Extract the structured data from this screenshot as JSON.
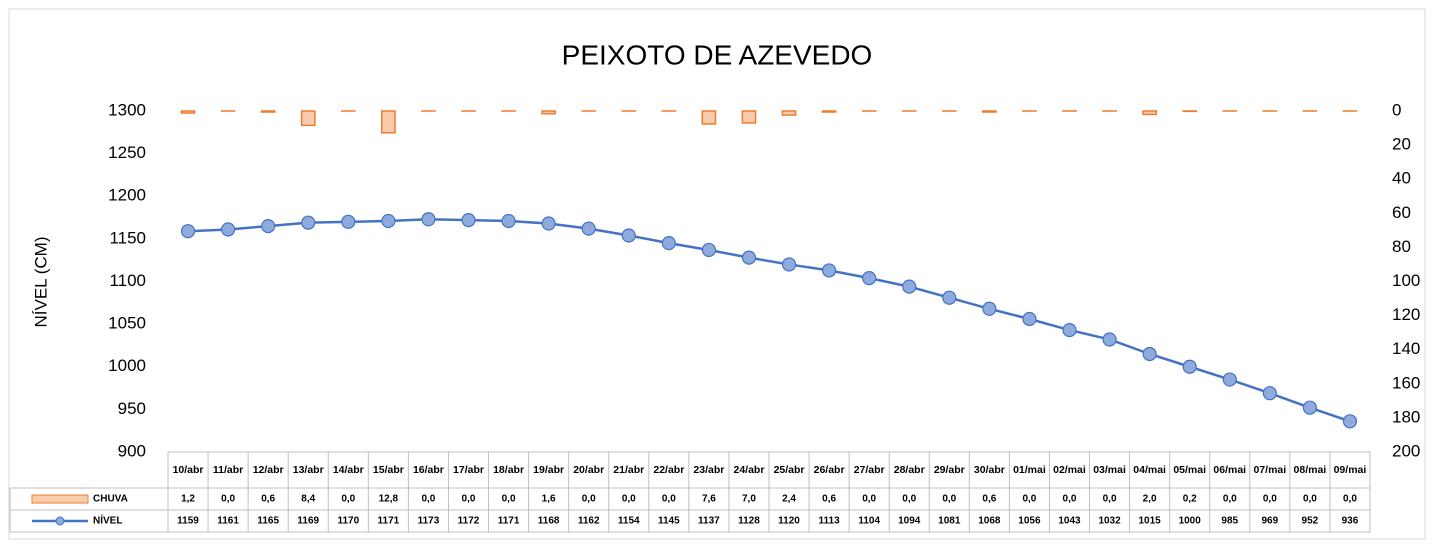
{
  "chart_data": {
    "type": "combo",
    "title": "PEIXOTO DE AZEVEDO",
    "y_label": "NÍVEL (CM)",
    "categories": [
      "10/abr",
      "11/abr",
      "12/abr",
      "13/abr",
      "14/abr",
      "15/abr",
      "16/abr",
      "17/abr",
      "18/abr",
      "19/abr",
      "20/abr",
      "21/abr",
      "22/abr",
      "23/abr",
      "24/abr",
      "25/abr",
      "26/abr",
      "27/abr",
      "28/abr",
      "29/abr",
      "30/abr",
      "01/mai",
      "02/mai",
      "03/mai",
      "04/mai",
      "05/mai",
      "06/mai",
      "07/mai",
      "08/mai",
      "09/mai"
    ],
    "series": [
      {
        "name": "CHUVA",
        "type": "bar",
        "axis": "y2",
        "color": "#ed7d31",
        "fill": "#f8cbad",
        "values": [
          1.2,
          0.0,
          0.6,
          8.4,
          0.0,
          12.8,
          0.0,
          0.0,
          0.0,
          1.6,
          0.0,
          0.0,
          0.0,
          7.6,
          7.0,
          2.4,
          0.6,
          0.0,
          0.0,
          0.0,
          0.6,
          0.0,
          0.0,
          0.0,
          2.0,
          0.2,
          0.0,
          0.0,
          0.0,
          0.0
        ],
        "value_labels": [
          "1,2",
          "0,0",
          "0,6",
          "8,4",
          "0,0",
          "12,8",
          "0,0",
          "0,0",
          "0,0",
          "1,6",
          "0,0",
          "0,0",
          "0,0",
          "7,6",
          "7,0",
          "2,4",
          "0,6",
          "0,0",
          "0,0",
          "0,0",
          "0,6",
          "0,0",
          "0,0",
          "0,0",
          "2,0",
          "0,2",
          "0,0",
          "0,0",
          "0,0",
          "0,0"
        ]
      },
      {
        "name": "NÍVEL",
        "type": "line",
        "color": "#4472c4",
        "marker_fill": "#8faadc",
        "values": [
          1159,
          1161,
          1165,
          1169,
          1170,
          1171,
          1173,
          1172,
          1171,
          1168,
          1162,
          1154,
          1145,
          1137,
          1128,
          1120,
          1113,
          1104,
          1094,
          1081,
          1068,
          1056,
          1043,
          1032,
          1015,
          1000,
          985,
          969,
          952,
          936
        ]
      }
    ],
    "ylim": [
      900,
      1300
    ],
    "yticks": [
      900,
      950,
      1000,
      1050,
      1100,
      1150,
      1200,
      1250,
      1300
    ],
    "y2lim": [
      0,
      200
    ],
    "y2ticks": [
      0,
      20,
      40,
      60,
      80,
      100,
      120,
      140,
      160,
      180,
      200
    ],
    "y2_inverted": true
  }
}
